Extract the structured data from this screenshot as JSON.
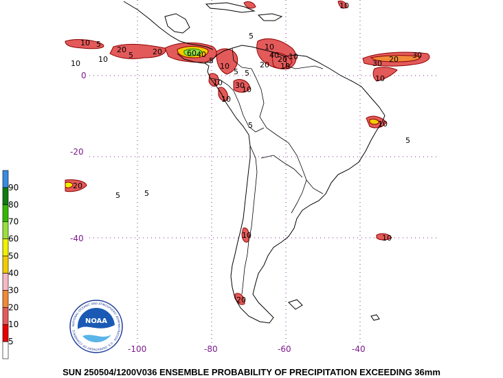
{
  "caption": "SUN 250504/1200V036  ENSEMBLE PROBABILITY OF PRECIPITATION EXCEEDING 36mm",
  "map": {
    "lon_labels": [
      "-100",
      "-80",
      "-60",
      "-40"
    ],
    "lat_labels": [
      "0",
      "-20",
      "-40"
    ],
    "grid_lons": [
      -100,
      -80,
      -60,
      -40
    ],
    "grid_lats": [
      0,
      -20,
      -40
    ]
  },
  "legend": {
    "levels": [
      "5",
      "10",
      "20",
      "30",
      "40",
      "50",
      "60",
      "70",
      "80",
      "90"
    ],
    "colors": [
      "#ffffff",
      "#e80000",
      "#e35a5a",
      "#f08a3a",
      "#f4b8c4",
      "#f0cc00",
      "#f0f000",
      "#98e040",
      "#33b800",
      "#117a11",
      "#3a8ae0"
    ]
  },
  "logo": {
    "name": "NOAA",
    "ring_text": "NATIONAL OCEANIC AND ATMOSPHERIC ADMINISTRATION · U.S. DEPARTMENT OF COMMERCE"
  },
  "contour_labels": [
    "10",
    "5",
    "20",
    "10",
    "60",
    "40",
    "20",
    "5",
    "10",
    "5",
    "5",
    "10",
    "10",
    "40",
    "20",
    "10",
    "20",
    "10",
    "5",
    "30",
    "10",
    "10",
    "5",
    "5",
    "10",
    "10",
    "30",
    "20",
    "5",
    "5",
    "5",
    "10",
    "10",
    "10",
    "20",
    "10",
    "30",
    "20"
  ],
  "colors": {
    "grid": "#7a2a8a",
    "label": "#7a1a8a"
  }
}
